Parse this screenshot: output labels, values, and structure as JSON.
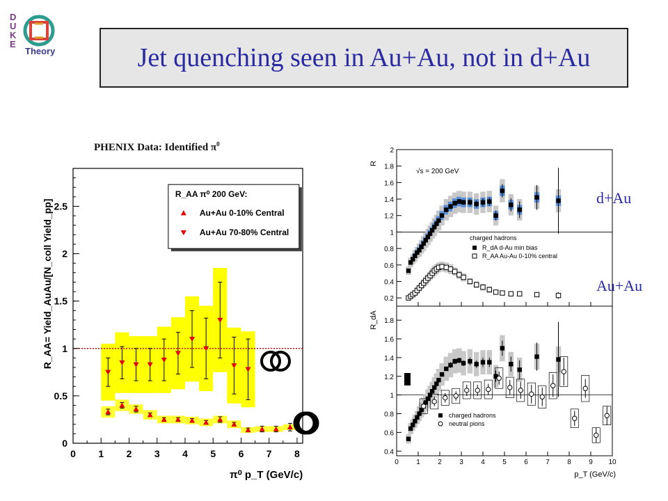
{
  "slide": {
    "title": "Jet quenching seen in Au+Au, not in d+Au",
    "logo": {
      "letters": "D U K E",
      "word": "Theory"
    },
    "phenix_caption": "PHENIX Data: Identified π",
    "phenix_caption_sup": "0",
    "label_dau": "d+Au",
    "label_auau": "Au+Au"
  },
  "chart_data": [
    {
      "type": "scatter",
      "ylabel": "R_AA= Yield_AuAu/[N_coll Yield_pp]",
      "xlabel": "π⁰ p_T (GeV/c)",
      "xlim": [
        0,
        8.2
      ],
      "ylim": [
        0,
        2.9
      ],
      "x_ticks": [
        "0",
        "1",
        "2",
        "3",
        "4",
        "5",
        "6",
        "7",
        "8"
      ],
      "y_ticks": [
        "0",
        "0.5",
        "1",
        "1.5",
        "2",
        "2.5"
      ],
      "reference_line": 1,
      "legend": {
        "title": "R_AA π⁰ 200 GeV:",
        "entries": [
          "Au+Au  0-10% Central",
          "Au+Au 70-80% Central"
        ]
      },
      "series": [
        {
          "name": "Au+Au  0-10% Central",
          "marker": "triangle-up",
          "x": [
            1.25,
            1.75,
            2.25,
            2.75,
            3.25,
            3.75,
            4.25,
            4.75,
            5.25,
            5.75,
            6.25,
            6.75,
            7.25,
            7.75
          ],
          "y": [
            0.33,
            0.4,
            0.36,
            0.3,
            0.25,
            0.25,
            0.24,
            0.22,
            0.25,
            0.2,
            0.14,
            0.15,
            0.15,
            0.17
          ],
          "yerr": [
            0.03,
            0.03,
            0.03,
            0.02,
            0.02,
            0.02,
            0.02,
            0.02,
            0.03,
            0.02,
            0.02,
            0.03,
            0.03,
            0.04
          ],
          "band": [
            0.06,
            0.06,
            0.05,
            0.05,
            0.04,
            0.04,
            0.04,
            0.04,
            0.04,
            0.04,
            0.03,
            0.03,
            0.03,
            0.03
          ]
        },
        {
          "name": "Au+Au 70-80% Central",
          "marker": "triangle-down",
          "x": [
            1.25,
            1.75,
            2.25,
            2.75,
            3.25,
            3.75,
            4.25,
            4.75,
            5.25,
            5.75,
            6.25
          ],
          "y": [
            0.75,
            0.85,
            0.83,
            0.83,
            0.88,
            0.95,
            1.1,
            1.0,
            1.3,
            0.82,
            0.78
          ],
          "yerr": [
            0.15,
            0.17,
            0.17,
            0.17,
            0.22,
            0.22,
            0.3,
            0.32,
            0.4,
            0.3,
            0.32
          ],
          "band": [
            0.3,
            0.32,
            0.3,
            0.3,
            0.35,
            0.38,
            0.45,
            0.45,
            0.55,
            0.4,
            0.4
          ]
        }
      ]
    },
    {
      "type": "scatter",
      "ylabel": "R",
      "xlim": [
        0,
        10
      ],
      "ylim": [
        0.1,
        2.0
      ],
      "y_ticks": [
        "0.2",
        "0.4",
        "0.6",
        "0.8",
        "1",
        "1.2",
        "1.4",
        "1.6",
        "1.8",
        "2"
      ],
      "annotation": "√s = 200 GeV",
      "reference_line": 1,
      "legend": {
        "title": "charged hadrons",
        "entries": [
          "R_dA  d-Au min bias",
          "R_AA  Au-Au 0-10% central"
        ]
      },
      "series": [
        {
          "name": "R_dA  d-Au min bias",
          "marker": "filled-square",
          "x": [
            0.55,
            0.65,
            0.75,
            0.85,
            0.95,
            1.05,
            1.15,
            1.25,
            1.35,
            1.45,
            1.55,
            1.65,
            1.75,
            1.85,
            1.95,
            2.1,
            2.3,
            2.5,
            2.7,
            2.9,
            3.1,
            3.4,
            3.7,
            4.0,
            4.3,
            4.6,
            4.9,
            5.3,
            5.7,
            6.5,
            7.5
          ],
          "y": [
            0.53,
            0.63,
            0.67,
            0.71,
            0.75,
            0.78,
            0.82,
            0.86,
            0.9,
            0.94,
            0.98,
            1.02,
            1.06,
            1.1,
            1.14,
            1.2,
            1.27,
            1.31,
            1.35,
            1.37,
            1.36,
            1.36,
            1.34,
            1.36,
            1.37,
            1.2,
            1.5,
            1.33,
            1.27,
            1.42,
            1.38
          ],
          "yerr": [
            0.02,
            0.02,
            0.02,
            0.02,
            0.02,
            0.02,
            0.02,
            0.02,
            0.02,
            0.02,
            0.02,
            0.02,
            0.02,
            0.02,
            0.02,
            0.02,
            0.02,
            0.03,
            0.03,
            0.03,
            0.03,
            0.04,
            0.04,
            0.05,
            0.05,
            0.06,
            0.08,
            0.08,
            0.1,
            0.15,
            0.4
          ],
          "band": [
            0.05,
            0.06,
            0.06,
            0.07,
            0.07,
            0.08,
            0.08,
            0.09,
            0.09,
            0.1,
            0.1,
            0.1,
            0.11,
            0.11,
            0.12,
            0.12,
            0.13,
            0.13,
            0.13,
            0.13,
            0.13,
            0.13,
            0.13,
            0.13,
            0.13,
            0.12,
            0.14,
            0.13,
            0.13,
            0.14,
            0.14
          ]
        },
        {
          "name": "R_AA  Au-Au 0-10% central",
          "marker": "open-square",
          "x": [
            0.55,
            0.65,
            0.75,
            0.85,
            0.95,
            1.05,
            1.15,
            1.25,
            1.35,
            1.45,
            1.55,
            1.65,
            1.75,
            1.85,
            1.95,
            2.1,
            2.3,
            2.5,
            2.7,
            2.9,
            3.1,
            3.4,
            3.7,
            4.0,
            4.3,
            4.6,
            4.9,
            5.3,
            5.7,
            6.5,
            7.5
          ],
          "y": [
            0.2,
            0.22,
            0.24,
            0.26,
            0.29,
            0.32,
            0.35,
            0.38,
            0.41,
            0.44,
            0.47,
            0.5,
            0.53,
            0.55,
            0.57,
            0.58,
            0.57,
            0.55,
            0.52,
            0.48,
            0.45,
            0.4,
            0.36,
            0.33,
            0.3,
            0.27,
            0.26,
            0.25,
            0.25,
            0.24,
            0.23
          ],
          "yerr": [
            0.01,
            0.01,
            0.01,
            0.01,
            0.01,
            0.01,
            0.01,
            0.01,
            0.01,
            0.01,
            0.01,
            0.01,
            0.01,
            0.01,
            0.01,
            0.01,
            0.01,
            0.01,
            0.01,
            0.01,
            0.01,
            0.01,
            0.01,
            0.01,
            0.01,
            0.01,
            0.02,
            0.02,
            0.02,
            0.03,
            0.04
          ],
          "band": [
            0.03,
            0.03,
            0.03,
            0.03,
            0.04,
            0.04,
            0.04,
            0.05,
            0.05,
            0.05,
            0.05,
            0.06,
            0.06,
            0.06,
            0.06,
            0.06,
            0.06,
            0.06,
            0.05,
            0.05,
            0.05,
            0.04,
            0.04,
            0.04,
            0.04,
            0.03,
            0.03,
            0.03,
            0.03,
            0.03,
            0.03
          ]
        }
      ]
    },
    {
      "type": "scatter",
      "ylabel": "R_dA",
      "xlabel": "p_T (GeV/c)",
      "xlim": [
        0,
        10
      ],
      "ylim": [
        0.35,
        1.95
      ],
      "x_ticks": [
        "0",
        "1",
        "2",
        "3",
        "4",
        "5",
        "6",
        "7",
        "8",
        "9",
        "10"
      ],
      "y_ticks": [
        "0.4",
        "0.6",
        "0.8",
        "1",
        "1.2",
        "1.4",
        "1.6",
        "1.8"
      ],
      "reference_line": 1,
      "legend": {
        "entries": [
          "charged hadrons",
          "neutral pions"
        ]
      },
      "series": [
        {
          "name": "charged hadrons",
          "marker": "filled-square",
          "x": [
            0.55,
            0.65,
            0.75,
            0.85,
            0.95,
            1.05,
            1.15,
            1.25,
            1.35,
            1.45,
            1.55,
            1.65,
            1.75,
            1.85,
            1.95,
            2.1,
            2.3,
            2.5,
            2.7,
            2.9,
            3.1,
            3.4,
            3.7,
            4.0,
            4.3,
            4.6,
            4.9,
            5.3,
            5.7,
            6.5,
            7.5
          ],
          "y": [
            0.53,
            0.64,
            0.68,
            0.72,
            0.76,
            0.8,
            0.84,
            0.88,
            0.92,
            0.96,
            1.0,
            1.04,
            1.08,
            1.12,
            1.16,
            1.22,
            1.28,
            1.32,
            1.36,
            1.37,
            1.34,
            1.36,
            1.33,
            1.35,
            1.35,
            1.2,
            1.5,
            1.33,
            1.27,
            1.41,
            1.38
          ],
          "yerr": [
            0.02,
            0.02,
            0.02,
            0.02,
            0.02,
            0.02,
            0.02,
            0.02,
            0.02,
            0.02,
            0.02,
            0.02,
            0.02,
            0.02,
            0.02,
            0.02,
            0.02,
            0.03,
            0.03,
            0.03,
            0.03,
            0.04,
            0.04,
            0.05,
            0.05,
            0.06,
            0.08,
            0.08,
            0.1,
            0.15,
            0.4
          ],
          "band": [
            0.05,
            0.06,
            0.06,
            0.07,
            0.07,
            0.08,
            0.08,
            0.09,
            0.09,
            0.1,
            0.1,
            0.1,
            0.11,
            0.11,
            0.12,
            0.12,
            0.13,
            0.13,
            0.13,
            0.13,
            0.13,
            0.13,
            0.13,
            0.13,
            0.13,
            0.12,
            0.14,
            0.13,
            0.13,
            0.14,
            0.14
          ]
        },
        {
          "name": "neutral pions",
          "marker": "open-circle",
          "x": [
            1.25,
            1.75,
            2.25,
            2.75,
            3.25,
            3.75,
            4.25,
            4.75,
            5.25,
            5.75,
            6.25,
            6.75,
            7.25,
            7.75,
            8.25,
            8.75,
            9.25,
            9.75
          ],
          "y": [
            0.88,
            0.93,
            0.97,
            0.99,
            1.05,
            1.05,
            1.06,
            1.18,
            1.08,
            1.05,
            1.01,
            0.98,
            1.1,
            1.25,
            0.75,
            1.07,
            0.57,
            0.78
          ],
          "yerr": [
            0.05,
            0.05,
            0.05,
            0.05,
            0.06,
            0.06,
            0.06,
            0.07,
            0.08,
            0.09,
            0.1,
            0.1,
            0.12,
            0.15,
            0.08,
            0.1,
            0.08,
            0.1
          ],
          "band": [
            0.08,
            0.08,
            0.08,
            0.08,
            0.09,
            0.09,
            0.1,
            0.11,
            0.11,
            0.12,
            0.12,
            0.12,
            0.14,
            0.16,
            0.1,
            0.14,
            0.08,
            0.1
          ]
        }
      ]
    }
  ]
}
